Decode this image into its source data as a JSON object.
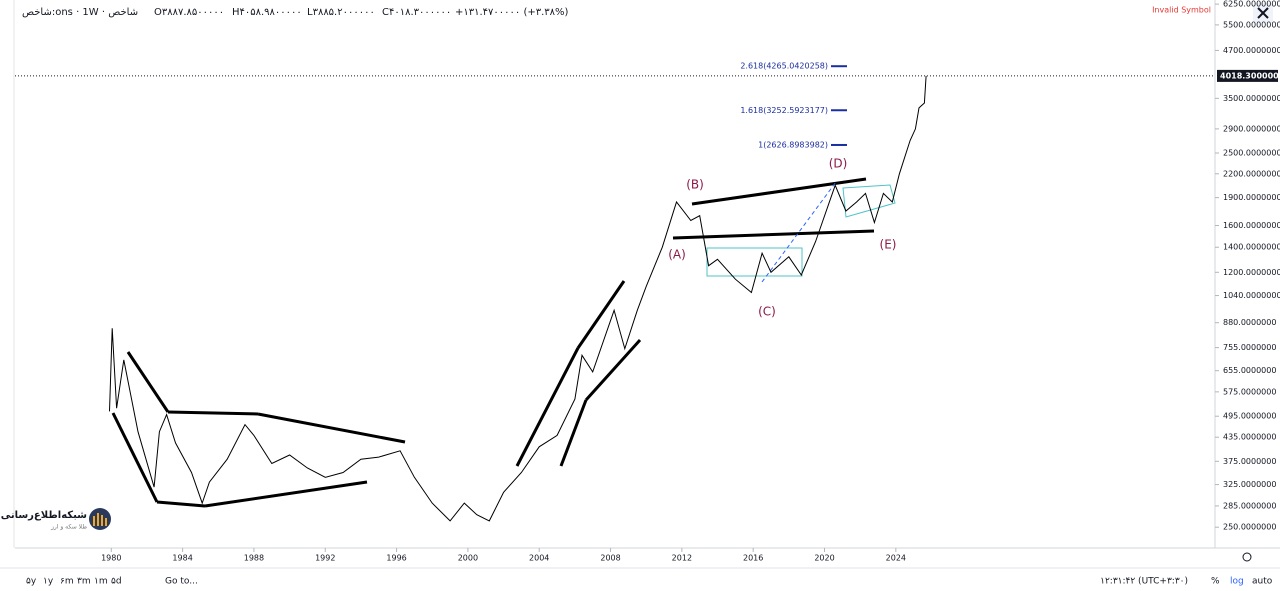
{
  "header": {
    "symbol": "شاخص:ons · 1W · شاخص",
    "open": "O۳۸۸۷.۸۵۰۰۰۰۰",
    "high": "H۴۰۵۸.۹۸۰۰۰۰۰",
    "low": "L۳۸۸۵.۲۰۰۰۰۰۰",
    "close": "C۴۰۱۸.۳۰۰۰۰۰۰",
    "change": "+۱۳۱.۴۷۰۰۰۰۰ (+۳.۳۸%)",
    "warning": "Invalid Symbol"
  },
  "logo": {
    "title": "شبکه‌اطلاع‌رسانی",
    "subtitle": "طلا سکه و ارز"
  },
  "toolbar": {
    "ranges": [
      "۵y",
      "۱y",
      "۶m",
      "۳m",
      "۱m",
      "۵d"
    ],
    "goto": "Go to...",
    "clock": "۱۲:۳۱:۴۲ (UTC+۳:۳۰)",
    "percent": "%",
    "log": "log",
    "auto": "auto"
  },
  "chart_data": {
    "type": "line",
    "log_scale": true,
    "grid": false,
    "xlim": [
      1974.6,
      2041.9
    ],
    "xticks": [
      1980,
      1984,
      1988,
      1992,
      1996,
      2000,
      2004,
      2008,
      2012,
      2016,
      2020,
      2024
    ],
    "ylim": [
      220,
      6410
    ],
    "yticks": [
      {
        "value": 6250,
        "label": "6250.0000000"
      },
      {
        "value": 5500,
        "label": "5500.0000000"
      },
      {
        "value": 4700,
        "label": "4700.0000000"
      },
      {
        "value": 3500,
        "label": "3500.0000000"
      },
      {
        "value": 2900,
        "label": "2900.0000000"
      },
      {
        "value": 2500,
        "label": "2500.0000000"
      },
      {
        "value": 2200,
        "label": "2200.0000000"
      },
      {
        "value": 1900,
        "label": "1900.0000000"
      },
      {
        "value": 1600,
        "label": "1600.0000000"
      },
      {
        "value": 1400,
        "label": "1400.0000000"
      },
      {
        "value": 1200,
        "label": "1200.0000000"
      },
      {
        "value": 1040,
        "label": "1040.0000000"
      },
      {
        "value": 880,
        "label": "880.0000000"
      },
      {
        "value": 755,
        "label": "755.0000000"
      },
      {
        "value": 655,
        "label": "655.0000000"
      },
      {
        "value": 575,
        "label": "575.0000000"
      },
      {
        "value": 495,
        "label": "495.0000000"
      },
      {
        "value": 435,
        "label": "435.0000000"
      },
      {
        "value": 375,
        "label": "375.0000000"
      },
      {
        "value": 325,
        "label": "325.0000000"
      },
      {
        "value": 285,
        "label": "285.0000000"
      },
      {
        "value": 250,
        "label": "250.0000000"
      }
    ],
    "series": [
      {
        "color": "#000000",
        "x": [
          1979.9,
          1980.05,
          1980.3,
          1980.7,
          1981.5,
          1982.4,
          1982.7,
          1983.1,
          1983.6,
          1984.5,
          1985.1,
          1985.5,
          1986.5,
          1987.5,
          1988.0,
          1989,
          1990,
          1991,
          1992,
          1993,
          1994,
          1995,
          1996.2,
          1997,
          1998,
          1999,
          1999.8,
          2000.5,
          2001.2,
          2002,
          2003,
          2004,
          2005,
          2006,
          2006.4,
          2007,
          2008.2,
          2008.8,
          2009.5,
          2010,
          2010.9,
          2011.7,
          2012.5,
          2013.0,
          2013.5,
          2014,
          2015,
          2015.9,
          2016.5,
          2017,
          2018,
          2018.7,
          2019.5,
          2020.6,
          2021.2,
          2021.8,
          2022.3,
          2022.8,
          2023.3,
          2023.8,
          2024.2,
          2024.8,
          2025.1,
          2025.3,
          2025.6,
          2025.7
        ],
        "values": [
          510,
          850,
          520,
          700,
          450,
          320,
          450,
          500,
          420,
          350,
          290,
          330,
          380,
          470,
          440,
          370,
          390,
          360,
          340,
          350,
          380,
          385,
          400,
          340,
          290,
          260,
          290,
          270,
          260,
          310,
          350,
          410,
          440,
          550,
          720,
          650,
          950,
          750,
          950,
          1100,
          1400,
          1850,
          1650,
          1700,
          1250,
          1300,
          1150,
          1060,
          1350,
          1200,
          1320,
          1180,
          1450,
          2050,
          1750,
          1850,
          1950,
          1630,
          1950,
          1850,
          2200,
          2700,
          2900,
          3300,
          3400,
          4018.3
        ]
      }
    ],
    "current_price": {
      "value": 4018.3,
      "label": "4018.3000000"
    },
    "fib_levels": [
      {
        "value": 4265.0420258,
        "label": "2.618(4265.0420258)"
      },
      {
        "value": 3252.5923177,
        "label": "1.618(3252.5923177)"
      },
      {
        "value": 2626.8983982,
        "label": "1(2626.8983982)"
      }
    ],
    "annotations": [
      "(A)",
      "(B)",
      "(C)",
      "(D)",
      "(E)"
    ]
  }
}
